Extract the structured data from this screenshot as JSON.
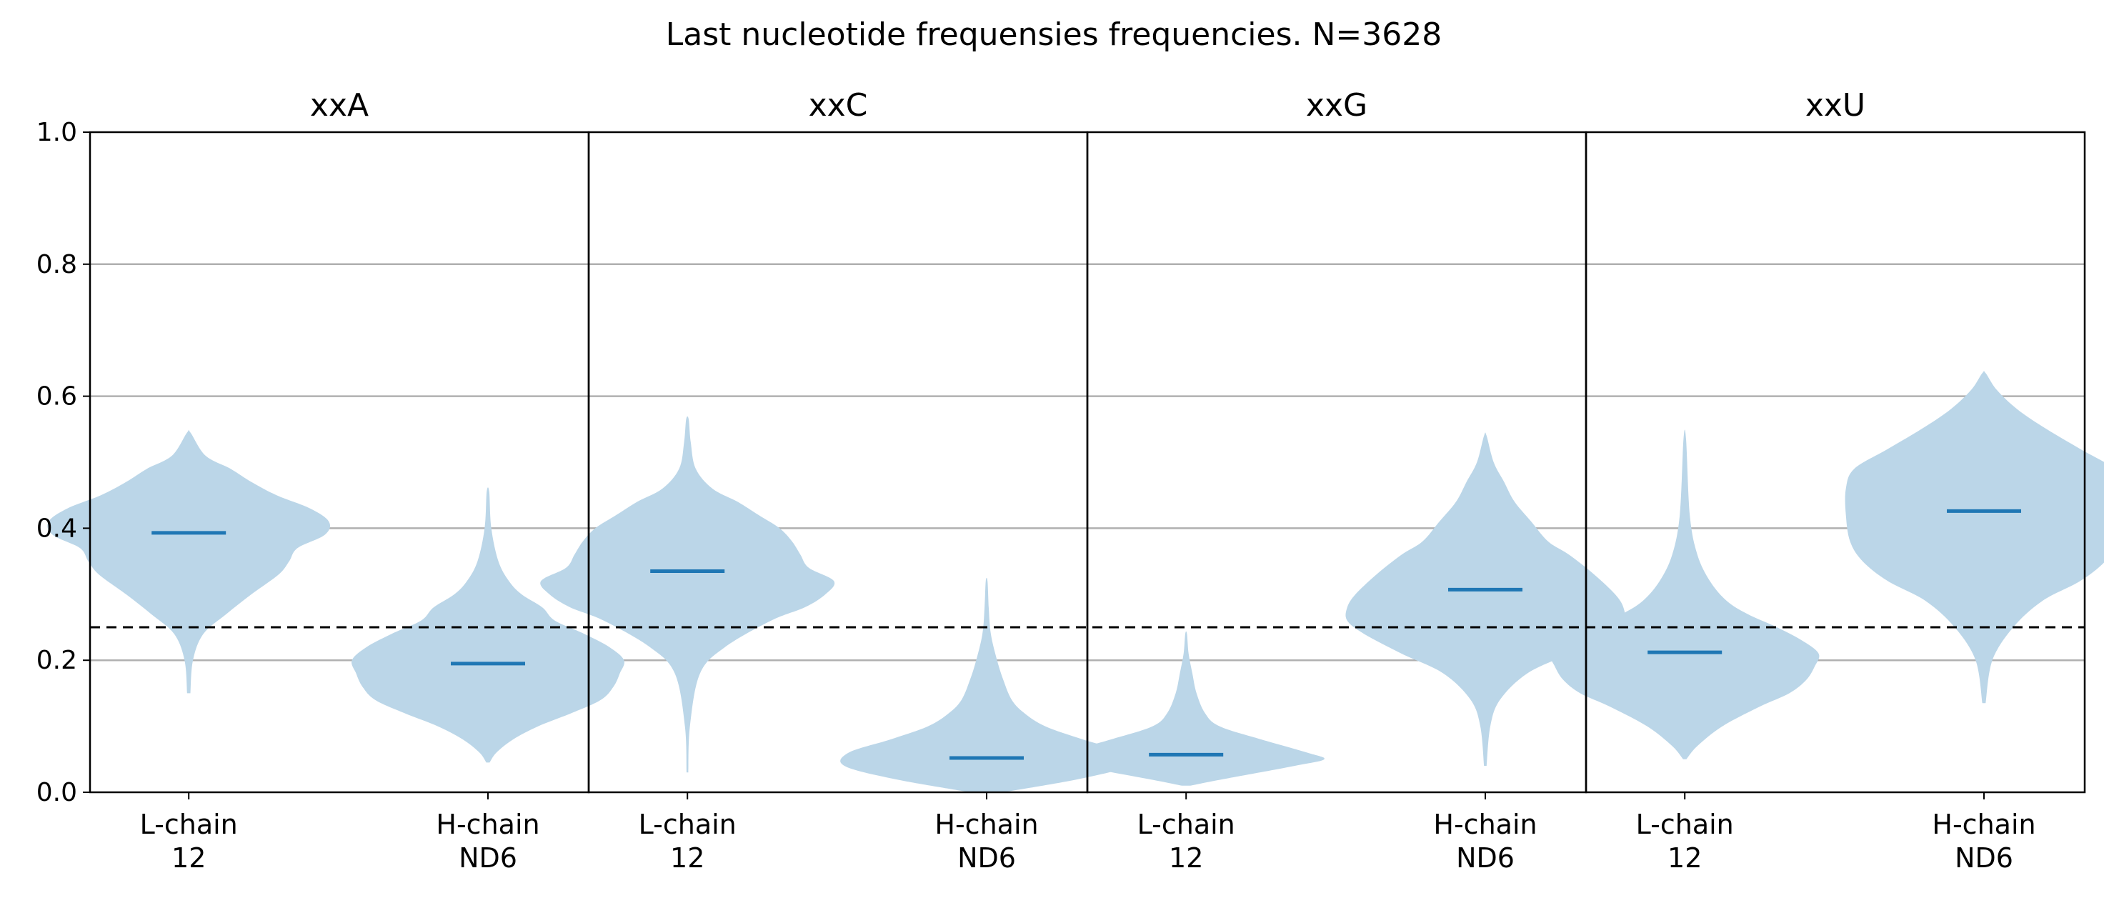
{
  "chart_data": {
    "type": "violin",
    "title": "Last nucleotide frequensies frequencies. N=3628",
    "ylim": [
      0.0,
      1.0
    ],
    "yticks": [
      "0.0",
      "0.2",
      "0.4",
      "0.6",
      "0.8",
      "1.0"
    ],
    "grid": "horizontal",
    "reference_line": {
      "y": 0.25,
      "style": "dashed",
      "color": "#000000"
    },
    "colors": {
      "body": "#BBD6E8",
      "median": "#1F77B4"
    },
    "categories": [
      {
        "line1": "L-chain",
        "line2": "12"
      },
      {
        "line1": "H-chain",
        "line2": "ND6"
      }
    ],
    "panels": [
      {
        "title": "xxA",
        "violins": [
          {
            "category": "L-chain 12",
            "median": 0.393,
            "min": 0.15,
            "max": 0.545,
            "profile": [
              [
                0.15,
                0.004
              ],
              [
                0.2,
                0.01
              ],
              [
                0.24,
                0.035
              ],
              [
                0.27,
                0.09
              ],
              [
                0.3,
                0.15
              ],
              [
                0.33,
                0.215
              ],
              [
                0.35,
                0.24
              ],
              [
                0.37,
                0.26
              ],
              [
                0.39,
                0.325
              ],
              [
                0.41,
                0.335
              ],
              [
                0.43,
                0.29
              ],
              [
                0.45,
                0.21
              ],
              [
                0.47,
                0.15
              ],
              [
                0.49,
                0.1
              ],
              [
                0.51,
                0.04
              ],
              [
                0.545,
                0.004
              ]
            ]
          },
          {
            "category": "H-chain ND6",
            "median": 0.195,
            "min": 0.045,
            "max": 0.455,
            "profile": [
              [
                0.045,
                0.004
              ],
              [
                0.06,
                0.02
              ],
              [
                0.08,
                0.06
              ],
              [
                0.1,
                0.12
              ],
              [
                0.12,
                0.2
              ],
              [
                0.14,
                0.27
              ],
              [
                0.16,
                0.3
              ],
              [
                0.18,
                0.315
              ],
              [
                0.2,
                0.325
              ],
              [
                0.22,
                0.29
              ],
              [
                0.24,
                0.23
              ],
              [
                0.26,
                0.16
              ],
              [
                0.28,
                0.13
              ],
              [
                0.3,
                0.08
              ],
              [
                0.32,
                0.05
              ],
              [
                0.35,
                0.025
              ],
              [
                0.4,
                0.008
              ],
              [
                0.455,
                0.003
              ]
            ]
          }
        ]
      },
      {
        "title": "xxC",
        "violins": [
          {
            "category": "L-chain 12",
            "median": 0.335,
            "min": 0.03,
            "max": 0.565,
            "profile": [
              [
                0.03,
                0.002
              ],
              [
                0.1,
                0.006
              ],
              [
                0.18,
                0.03
              ],
              [
                0.22,
                0.09
              ],
              [
                0.26,
                0.2
              ],
              [
                0.28,
                0.28
              ],
              [
                0.3,
                0.33
              ],
              [
                0.32,
                0.35
              ],
              [
                0.34,
                0.29
              ],
              [
                0.36,
                0.27
              ],
              [
                0.38,
                0.25
              ],
              [
                0.4,
                0.22
              ],
              [
                0.42,
                0.17
              ],
              [
                0.44,
                0.12
              ],
              [
                0.46,
                0.06
              ],
              [
                0.49,
                0.02
              ],
              [
                0.53,
                0.008
              ],
              [
                0.565,
                0.003
              ]
            ]
          },
          {
            "category": "H-chain ND6",
            "median": 0.052,
            "min": 0.0,
            "max": 0.32,
            "profile": [
              [
                0.0,
                0.04
              ],
              [
                0.02,
                0.22
              ],
              [
                0.04,
                0.34
              ],
              [
                0.06,
                0.33
              ],
              [
                0.08,
                0.23
              ],
              [
                0.1,
                0.14
              ],
              [
                0.12,
                0.09
              ],
              [
                0.14,
                0.06
              ],
              [
                0.17,
                0.04
              ],
              [
                0.2,
                0.025
              ],
              [
                0.24,
                0.01
              ],
              [
                0.28,
                0.005
              ],
              [
                0.32,
                0.002
              ]
            ]
          }
        ]
      },
      {
        "title": "xxG",
        "violins": [
          {
            "category": "L-chain 12",
            "median": 0.057,
            "min": 0.01,
            "max": 0.24,
            "profile": [
              [
                0.01,
                0.01
              ],
              [
                0.02,
                0.09
              ],
              [
                0.04,
                0.26
              ],
              [
                0.05,
                0.33
              ],
              [
                0.06,
                0.29
              ],
              [
                0.08,
                0.18
              ],
              [
                0.1,
                0.08
              ],
              [
                0.12,
                0.045
              ],
              [
                0.15,
                0.025
              ],
              [
                0.18,
                0.015
              ],
              [
                0.21,
                0.006
              ],
              [
                0.24,
                0.002
              ]
            ]
          },
          {
            "category": "H-chain ND6",
            "median": 0.307,
            "min": 0.04,
            "max": 0.54,
            "profile": [
              [
                0.04,
                0.003
              ],
              [
                0.1,
                0.012
              ],
              [
                0.14,
                0.035
              ],
              [
                0.18,
                0.1
              ],
              [
                0.21,
                0.2
              ],
              [
                0.24,
                0.29
              ],
              [
                0.26,
                0.33
              ],
              [
                0.28,
                0.33
              ],
              [
                0.3,
                0.31
              ],
              [
                0.33,
                0.26
              ],
              [
                0.36,
                0.2
              ],
              [
                0.38,
                0.15
              ],
              [
                0.41,
                0.11
              ],
              [
                0.44,
                0.07
              ],
              [
                0.47,
                0.045
              ],
              [
                0.5,
                0.02
              ],
              [
                0.54,
                0.003
              ]
            ]
          }
        ]
      },
      {
        "title": "xxU",
        "violins": [
          {
            "category": "L-chain 12",
            "median": 0.212,
            "min": 0.05,
            "max": 0.535,
            "profile": [
              [
                0.05,
                0.004
              ],
              [
                0.07,
                0.03
              ],
              [
                0.1,
                0.09
              ],
              [
                0.13,
                0.18
              ],
              [
                0.15,
                0.25
              ],
              [
                0.17,
                0.29
              ],
              [
                0.19,
                0.31
              ],
              [
                0.21,
                0.32
              ],
              [
                0.23,
                0.28
              ],
              [
                0.25,
                0.22
              ],
              [
                0.27,
                0.15
              ],
              [
                0.29,
                0.1
              ],
              [
                0.32,
                0.06
              ],
              [
                0.36,
                0.03
              ],
              [
                0.42,
                0.012
              ],
              [
                0.535,
                0.003
              ]
            ]
          },
          {
            "category": "H-chain ND6",
            "median": 0.426,
            "min": 0.135,
            "max": 0.635,
            "profile": [
              [
                0.135,
                0.004
              ],
              [
                0.2,
                0.02
              ],
              [
                0.25,
                0.07
              ],
              [
                0.29,
                0.14
              ],
              [
                0.32,
                0.23
              ],
              [
                0.35,
                0.29
              ],
              [
                0.38,
                0.32
              ],
              [
                0.42,
                0.33
              ],
              [
                0.46,
                0.33
              ],
              [
                0.49,
                0.31
              ],
              [
                0.52,
                0.23
              ],
              [
                0.55,
                0.15
              ],
              [
                0.58,
                0.08
              ],
              [
                0.61,
                0.03
              ],
              [
                0.635,
                0.004
              ]
            ]
          }
        ]
      }
    ]
  }
}
